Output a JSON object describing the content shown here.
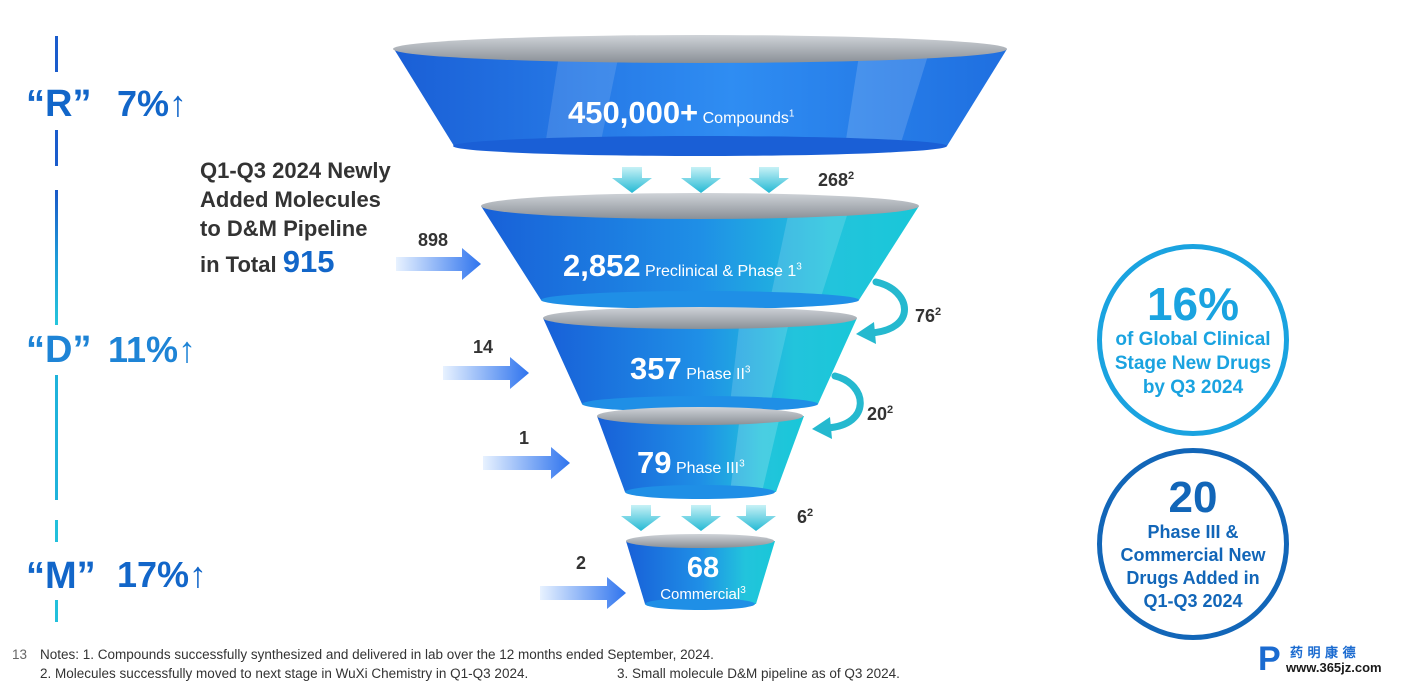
{
  "rdm": [
    {
      "letter": "“R”",
      "pct": "7%↑",
      "color": "#1266c9"
    },
    {
      "letter": "“D”",
      "pct": "11%↑",
      "color": "#1e84d6"
    },
    {
      "letter": "“M”",
      "pct": "17%↑",
      "color": "#1266c9"
    }
  ],
  "added": {
    "line1": "Q1-Q3 2024 Newly",
    "line2": "Added Molecules",
    "line3": "to D&M Pipeline",
    "line4_prefix": "in Total",
    "total": "915"
  },
  "funnel": [
    {
      "value": "450,000+",
      "label": "Compounds",
      "sup": "1"
    },
    {
      "value": "2,852",
      "label": "Preclinical & Phase 1",
      "sup": "3"
    },
    {
      "value": "357",
      "label": "Phase II",
      "sup": "3"
    },
    {
      "value": "79",
      "label": "Phase III",
      "sup": "3"
    },
    {
      "value": "68",
      "label": "Commercial",
      "sup": "3"
    }
  ],
  "inflows": [
    "898",
    "14",
    "1",
    "2"
  ],
  "transitions": [
    {
      "value": "268",
      "sup": "2"
    },
    {
      "value": "76",
      "sup": "2"
    },
    {
      "value": "20",
      "sup": "2"
    },
    {
      "value": "6",
      "sup": "2"
    }
  ],
  "circles": [
    {
      "big": "16%",
      "l1": "of Global Clinical",
      "l2": "Stage New Drugs",
      "l3": "by Q3 2024",
      "l4": "",
      "color": "#1aa3e0"
    },
    {
      "big": "20",
      "l1": "Phase III &",
      "l2": "Commercial New",
      "l3": "Drugs Added in",
      "l4": "Q1-Q3 2024",
      "color": "#1266b8"
    }
  ],
  "notes": {
    "page": "13",
    "line1": "Notes: 1. Compounds successfully synthesized and delivered in lab over the 12 months ended September, 2024.",
    "line2a": "2. Molecules successfully moved to next stage in WuXi Chemistry in Q1-Q3 2024.",
    "line2b": "3. Small molecule D&M pipeline as of Q3 2024."
  },
  "watermark": {
    "cn": "药 明 康 德",
    "url": "www.365jz.com"
  }
}
